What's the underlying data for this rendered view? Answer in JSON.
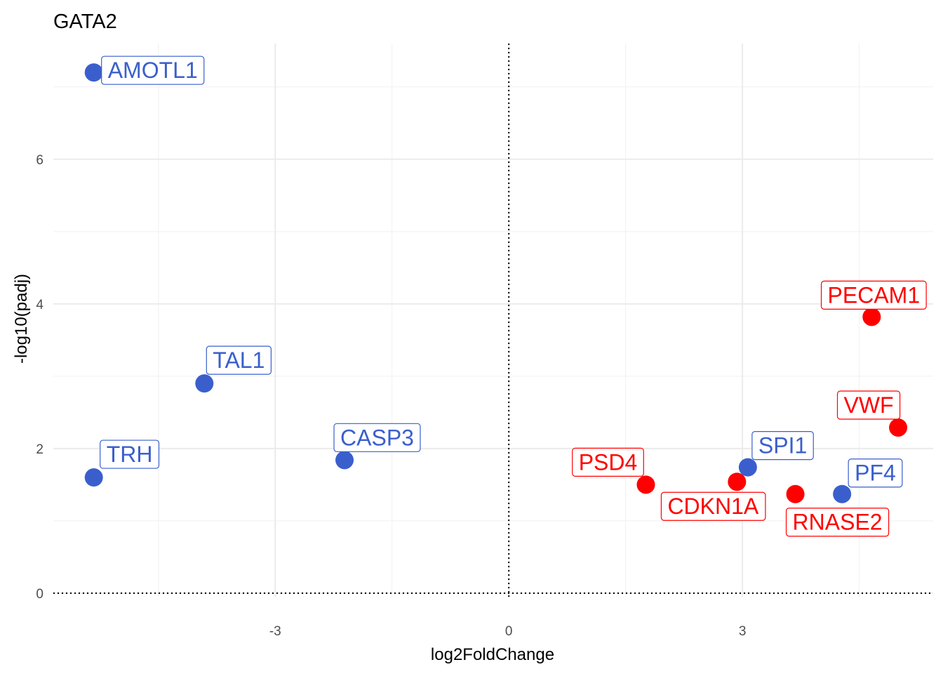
{
  "chart_data": {
    "type": "scatter",
    "title": "GATA2",
    "xlabel": "log2FoldChange",
    "ylabel": "-log10(padj)",
    "xlim": [
      -5.85,
      5.45
    ],
    "ylim": [
      -0.05,
      7.6
    ],
    "x_ticks": [
      -3,
      0,
      3
    ],
    "x_tick_labels": [
      "-3",
      "0",
      "3"
    ],
    "y_ticks": [
      0,
      2,
      4,
      6
    ],
    "y_tick_labels": [
      "0",
      "2",
      "4",
      "6"
    ],
    "x_minor": [
      -4.5,
      -1.5,
      1.5,
      4.5
    ],
    "y_minor": [
      1,
      3,
      5,
      7
    ],
    "grid": true,
    "reference_lines": {
      "x": 0,
      "y": 0,
      "style": "dotted"
    },
    "colors": {
      "up": "#ff0000",
      "down": "#3a5fcd"
    },
    "points": [
      {
        "gene": "AMOTL1",
        "x": -5.33,
        "y": 7.2,
        "group": "down"
      },
      {
        "gene": "TAL1",
        "x": -3.91,
        "y": 2.9,
        "group": "down"
      },
      {
        "gene": "TRH",
        "x": -5.33,
        "y": 1.6,
        "group": "down"
      },
      {
        "gene": "CASP3",
        "x": -2.11,
        "y": 1.84,
        "group": "down"
      },
      {
        "gene": "SPI1",
        "x": 3.07,
        "y": 1.74,
        "group": "down"
      },
      {
        "gene": "PF4",
        "x": 4.28,
        "y": 1.37,
        "group": "down"
      },
      {
        "gene": "PECAM1",
        "x": 4.66,
        "y": 3.82,
        "group": "up"
      },
      {
        "gene": "VWF",
        "x": 5.0,
        "y": 2.29,
        "group": "up"
      },
      {
        "gene": "PSD4",
        "x": 1.76,
        "y": 1.5,
        "group": "up"
      },
      {
        "gene": "CDKN1A",
        "x": 2.93,
        "y": 1.54,
        "group": "up"
      },
      {
        "gene": "RNASE2",
        "x": 3.68,
        "y": 1.37,
        "group": "up"
      }
    ]
  }
}
